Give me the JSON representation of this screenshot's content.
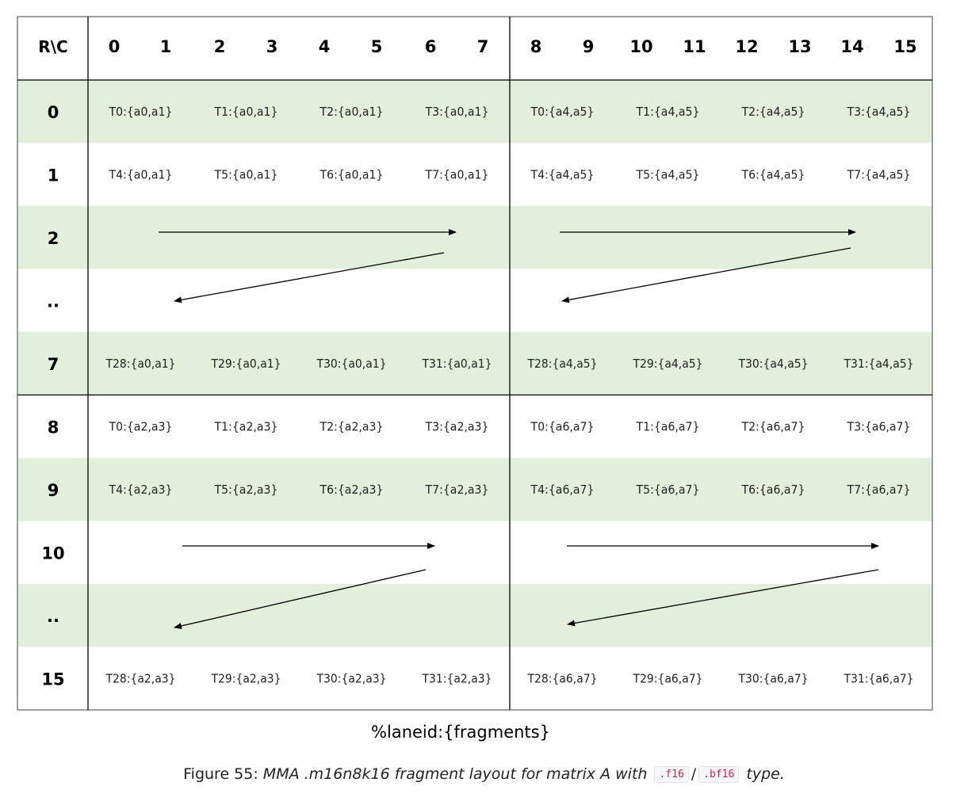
{
  "table": {
    "corner": "R\\C",
    "col_headers": [
      "0",
      "1",
      "2",
      "3",
      "4",
      "5",
      "6",
      "7",
      "8",
      "9",
      "10",
      "11",
      "12",
      "13",
      "14",
      "15"
    ],
    "row_labels": [
      "0",
      "1",
      "2",
      "..",
      "7",
      "8",
      "9",
      "10",
      "..",
      "15"
    ],
    "rows": [
      [
        "T0:{a0,a1}",
        "T1:{a0,a1}",
        "T2:{a0,a1}",
        "T3:{a0,a1}",
        "T0:{a4,a5}",
        "T1:{a4,a5}",
        "T2:{a4,a5}",
        "T3:{a4,a5}"
      ],
      [
        "T4:{a0,a1}",
        "T5:{a0,a1}",
        "T6:{a0,a1}",
        "T7:{a0,a1}",
        "T4:{a4,a5}",
        "T5:{a4,a5}",
        "T6:{a4,a5}",
        "T7:{a4,a5}"
      ],
      [],
      [],
      [
        "T28:{a0,a1}",
        "T29:{a0,a1}",
        "T30:{a0,a1}",
        "T31:{a0,a1}",
        "T28:{a4,a5}",
        "T29:{a4,a5}",
        "T30:{a4,a5}",
        "T31:{a4,a5}"
      ],
      [
        "T0:{a2,a3}",
        "T1:{a2,a3}",
        "T2:{a2,a3}",
        "T3:{a2,a3}",
        "T0:{a6,a7}",
        "T1:{a6,a7}",
        "T2:{a6,a7}",
        "T3:{a6,a7}"
      ],
      [
        "T4:{a2,a3}",
        "T5:{a2,a3}",
        "T6:{a2,a3}",
        "T7:{a2,a3}",
        "T4:{a6,a7}",
        "T5:{a6,a7}",
        "T6:{a6,a7}",
        "T7:{a6,a7}"
      ],
      [],
      [],
      [
        "T28:{a2,a3}",
        "T29:{a2,a3}",
        "T30:{a2,a3}",
        "T31:{a2,a3}",
        "T28:{a6,a7}",
        "T29:{a6,a7}",
        "T30:{a6,a7}",
        "T31:{a6,a7}"
      ]
    ]
  },
  "legend": "%laneid:{fragments}",
  "caption": {
    "prefix": "Figure 55: ",
    "italic_1": "MMA .m16n8k16 fragment layout for matrix A with",
    "code_1": ".f16",
    "separator": "/",
    "code_2": ".bf16",
    "italic_2": "type."
  },
  "colors": {
    "band": "#e2efda",
    "line": "#000000",
    "grid_outer": "#7f7f7f"
  }
}
